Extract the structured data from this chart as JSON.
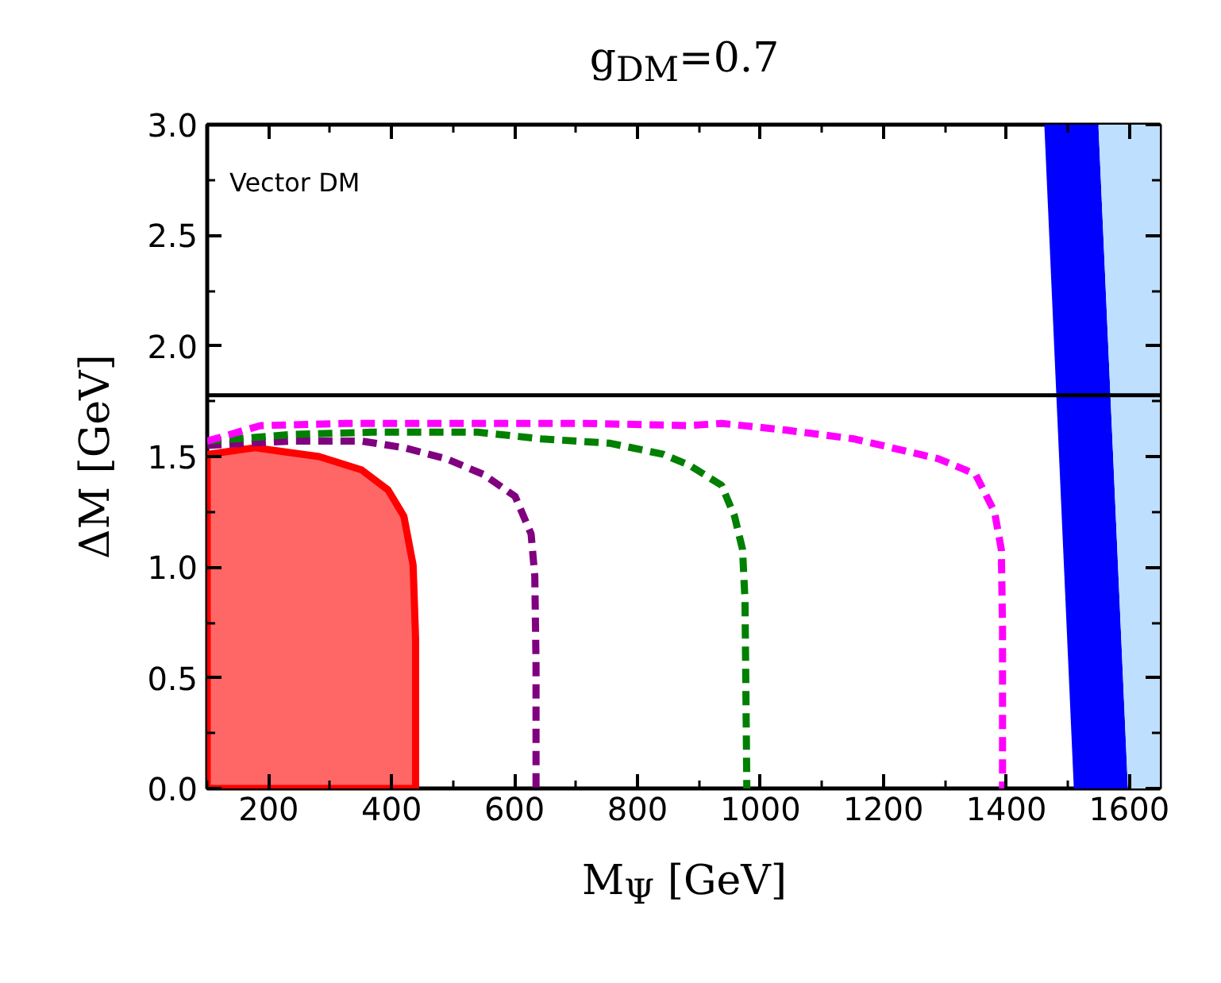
{
  "chart_data": {
    "type": "line",
    "title": "g$_{DM}$=0.7",
    "xlabel": "M$_{Ψ}$ [GeV]",
    "ylabel": "ΔM [GeV]",
    "annotations": [
      "Vector DM"
    ],
    "xlim": [
      100,
      1650
    ],
    "ylim": [
      0,
      3.0
    ],
    "xticks": [
      200,
      400,
      600,
      800,
      1000,
      1200,
      1400,
      1600
    ],
    "yticks": [
      {
        "value": 0,
        "label": "0.0"
      },
      {
        "value": 0.5,
        "label": "0.5"
      },
      {
        "value": 1,
        "label": "1.0"
      },
      {
        "value": 1.5,
        "label": "1.5"
      },
      {
        "value": 2,
        "label": "2.0"
      },
      {
        "value": 2.5,
        "label": "2.5"
      },
      {
        "value": 3,
        "label": "3.0"
      }
    ],
    "grid": false,
    "ref_lines": [
      {
        "axis": "y",
        "value": 1.777,
        "color": "#000000"
      }
    ],
    "series": [
      {
        "type": "area",
        "color": "#ff0000",
        "line_style": "solid",
        "x": [
          100,
          100,
          178,
          230,
          282,
          351,
          394,
          420,
          435,
          439,
          439
        ],
        "values": [
          0,
          1.51,
          1.54,
          1.52,
          1.5,
          1.44,
          1.35,
          1.23,
          1.01,
          0.68,
          0
        ]
      },
      {
        "color": "#800080",
        "line_style": "dashed",
        "x": [
          100,
          161,
          239,
          351,
          420,
          489,
          549,
          601,
          627,
          633,
          635,
          635
        ],
        "values": [
          1.55,
          1.56,
          1.57,
          1.57,
          1.54,
          1.49,
          1.42,
          1.32,
          1.15,
          0.96,
          0.56,
          0
        ]
      },
      {
        "color": "#008000",
        "line_style": "dashed",
        "x": [
          100,
          239,
          368,
          540,
          644,
          756,
          842,
          885,
          937,
          958,
          971,
          975,
          978
        ],
        "values": [
          1.57,
          1.6,
          1.61,
          1.61,
          1.58,
          1.56,
          1.51,
          1.46,
          1.37,
          1.23,
          1.08,
          0.85,
          0
        ]
      },
      {
        "color": "#ff00ff",
        "line_style": "dashed",
        "x": [
          100,
          187,
          325,
          540,
          713,
          885,
          937,
          1040,
          1152,
          1290,
          1350,
          1381,
          1392,
          1394,
          1394
        ],
        "values": [
          1.57,
          1.64,
          1.65,
          1.65,
          1.65,
          1.64,
          1.65,
          1.62,
          1.58,
          1.49,
          1.42,
          1.25,
          1.08,
          0.73,
          0
        ]
      },
      {
        "type": "area",
        "color": "#0000ff",
        "x": [
          1462,
          1550,
          1598,
          1510
        ],
        "values": [
          3.0,
          3.0,
          0,
          0
        ]
      },
      {
        "type": "area",
        "color": "#bfdfff",
        "x": [
          1550,
          1650,
          1650,
          1598
        ],
        "values": [
          3.0,
          3.0,
          0,
          0
        ]
      }
    ]
  }
}
